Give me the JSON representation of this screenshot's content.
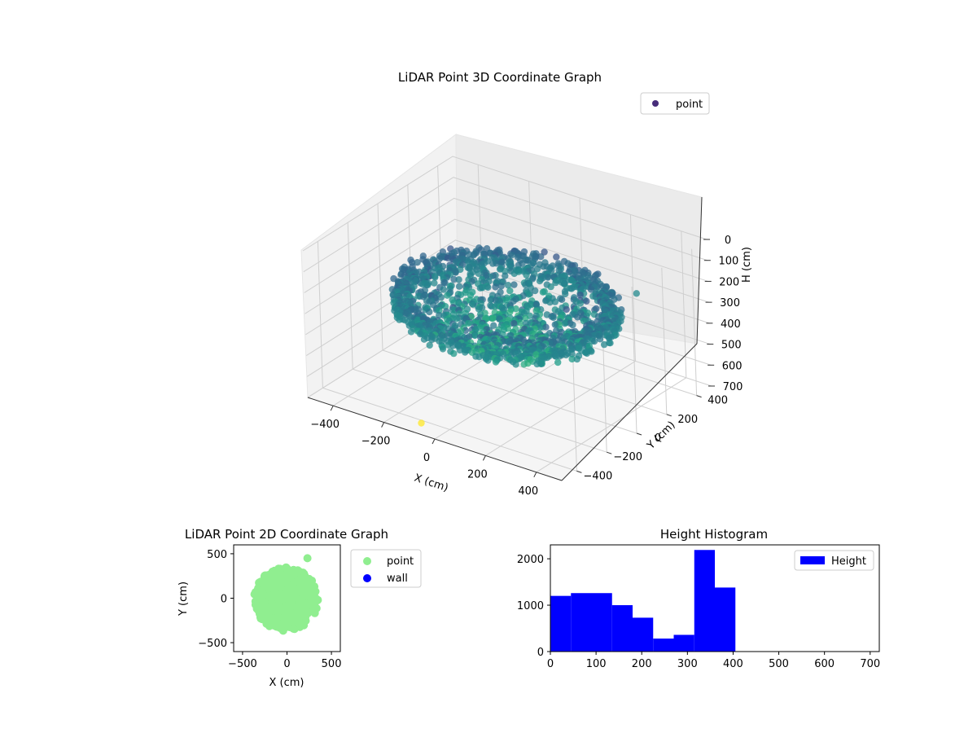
{
  "chart_data": [
    {
      "type": "scatter",
      "projection": "3d",
      "title": "LiDAR Point 3D Coordinate Graph",
      "xlabel": "X (cm)",
      "ylabel": "Y (cm)",
      "zlabel": "H (cm)",
      "xlim": [
        -500,
        500
      ],
      "ylim": [
        -500,
        500
      ],
      "zlim": [
        700,
        0
      ],
      "xticks": [
        -400,
        -200,
        0,
        200,
        400
      ],
      "yticks": [
        -400,
        -200,
        0,
        200,
        400
      ],
      "zticks": [
        0,
        100,
        200,
        300,
        400,
        500,
        600,
        700
      ],
      "xtick_labels": [
        "−400",
        "−200",
        "0",
        "200",
        "400"
      ],
      "ytick_labels": [
        "−400",
        "−200",
        "0",
        "200",
        "400"
      ],
      "ztick_labels": [
        "0",
        "100",
        "200",
        "300",
        "400",
        "500",
        "600",
        "700"
      ],
      "colormap": "viridis",
      "legend": {
        "entries": [
          "point"
        ],
        "location": "top-right"
      },
      "series": [
        {
          "name": "point",
          "color": "#472c7a",
          "description_of_shape": "ring of points, radius ~380 cm, heights 0-400 cm",
          "sample_points": [
            {
              "x": 380,
              "y": 0,
              "h": 310
            },
            {
              "x": 0,
              "y": 380,
              "h": 330
            },
            {
              "x": -380,
              "y": 0,
              "h": 340
            },
            {
              "x": 0,
              "y": -380,
              "h": 330
            },
            {
              "x": 200,
              "y": -300,
              "h": 120
            },
            {
              "x": -200,
              "y": -300,
              "h": 250
            },
            {
              "x": 0,
              "y": 0,
              "h": 400
            }
          ],
          "outliers": [
            {
              "x": 250,
              "y": 440,
              "h": 330
            },
            {
              "x": -100,
              "y": -420,
              "h": 700
            }
          ]
        }
      ],
      "grid": true
    },
    {
      "type": "scatter",
      "title": "LiDAR Point 2D Coordinate Graph",
      "xlabel": "X (cm)",
      "ylabel": "Y (cm)",
      "xlim": [
        -600,
        600
      ],
      "ylim": [
        -600,
        600
      ],
      "xticks": [
        -500,
        0,
        500
      ],
      "yticks": [
        -500,
        0,
        500
      ],
      "xtick_labels": [
        "−500",
        "0",
        "500"
      ],
      "ytick_labels": [
        "−500",
        "0",
        "500"
      ],
      "legend": {
        "entries": [
          "point",
          "wall"
        ],
        "location": "outside-right"
      },
      "series": [
        {
          "name": "point",
          "color": "#90ee90",
          "shape": "filled disc radius ~380 cm centered near (0,0)",
          "outlier": {
            "x": 230,
            "y": 450
          }
        },
        {
          "name": "wall",
          "color": "#0000ff",
          "values": []
        }
      ],
      "grid": false
    },
    {
      "type": "bar",
      "title": "Height Histogram",
      "xlabel": "",
      "ylabel": "",
      "xlim": [
        0,
        720
      ],
      "ylim": [
        0,
        2300
      ],
      "xticks": [
        0,
        100,
        200,
        300,
        400,
        500,
        600,
        700
      ],
      "yticks": [
        0,
        1000,
        2000
      ],
      "legend": {
        "entries": [
          "Height"
        ],
        "location": "top-right"
      },
      "series": [
        {
          "name": "Height",
          "color": "#0000ff",
          "bin_edges": [
            0,
            45,
            90,
            135,
            180,
            225,
            270,
            315,
            360,
            405
          ],
          "values": [
            1200,
            1260,
            1260,
            1000,
            730,
            280,
            360,
            2190,
            1380
          ]
        }
      ],
      "grid": false
    }
  ]
}
